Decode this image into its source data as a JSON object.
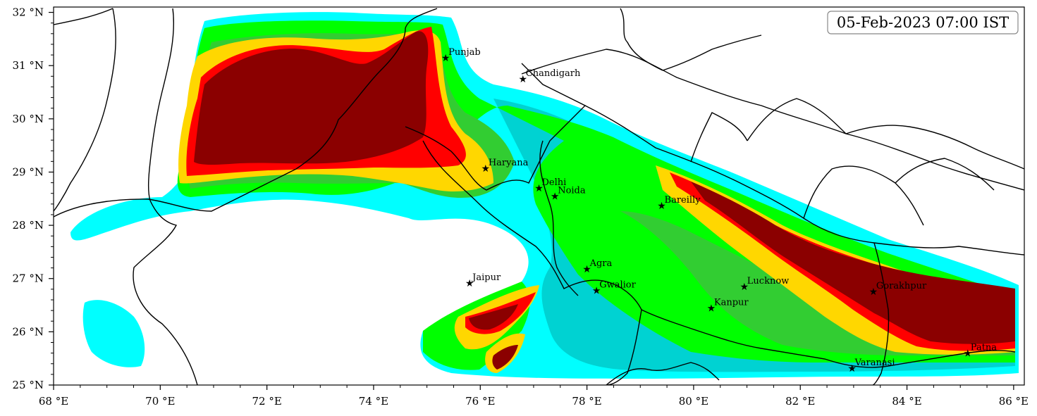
{
  "map": {
    "timestamp": "05-Feb-2023 07:00 IST",
    "lon_range": [
      68,
      86.2
    ],
    "lat_range": [
      25,
      32.1
    ],
    "x_ticks": [
      {
        "lon": 68,
        "label": "68 °E"
      },
      {
        "lon": 70,
        "label": "70 °E"
      },
      {
        "lon": 72,
        "label": "72 °E"
      },
      {
        "lon": 74,
        "label": "74 °E"
      },
      {
        "lon": 76,
        "label": "76 °E"
      },
      {
        "lon": 78,
        "label": "78 °E"
      },
      {
        "lon": 80,
        "label": "80 °E"
      },
      {
        "lon": 82,
        "label": "82 °E"
      },
      {
        "lon": 84,
        "label": "84 °E"
      },
      {
        "lon": 86,
        "label": "86 °E"
      }
    ],
    "y_ticks": [
      {
        "lat": 25,
        "label": "25 °N"
      },
      {
        "lat": 26,
        "label": "26 °N"
      },
      {
        "lat": 27,
        "label": "27 °N"
      },
      {
        "lat": 28,
        "label": "28 °N"
      },
      {
        "lat": 29,
        "label": "29 °N"
      },
      {
        "lat": 30,
        "label": "30 °N"
      },
      {
        "lat": 31,
        "label": "31 °N"
      },
      {
        "lat": 32,
        "label": "32 °N"
      }
    ],
    "level_colors": {
      "l1": "#00ffff",
      "l2": "#00d2d2",
      "l3": "#32cd32",
      "l4": "#00ff00",
      "l5": "#ffd700",
      "l6": "#ff0000",
      "l7": "#8b0000"
    },
    "cities": [
      {
        "name": "Punjab",
        "lon": 75.35,
        "lat": 31.15
      },
      {
        "name": "Chandigarh",
        "lon": 76.8,
        "lat": 30.75
      },
      {
        "name": "Haryana",
        "lon": 76.1,
        "lat": 29.07
      },
      {
        "name": "Delhi",
        "lon": 77.1,
        "lat": 28.7
      },
      {
        "name": "Noida",
        "lon": 77.4,
        "lat": 28.55
      },
      {
        "name": "Bareilly",
        "lon": 79.4,
        "lat": 28.37
      },
      {
        "name": "Agra",
        "lon": 78.0,
        "lat": 27.18
      },
      {
        "name": "Jaipur",
        "lon": 75.8,
        "lat": 26.92
      },
      {
        "name": "Gwalior",
        "lon": 78.18,
        "lat": 26.78
      },
      {
        "name": "Lucknow",
        "lon": 80.95,
        "lat": 26.85
      },
      {
        "name": "Kanpur",
        "lon": 80.33,
        "lat": 26.45
      },
      {
        "name": "Gorakhpur",
        "lon": 83.37,
        "lat": 26.76
      },
      {
        "name": "Varanasi",
        "lon": 82.97,
        "lat": 25.32
      },
      {
        "name": "Patna",
        "lon": 85.14,
        "lat": 25.6
      }
    ]
  }
}
